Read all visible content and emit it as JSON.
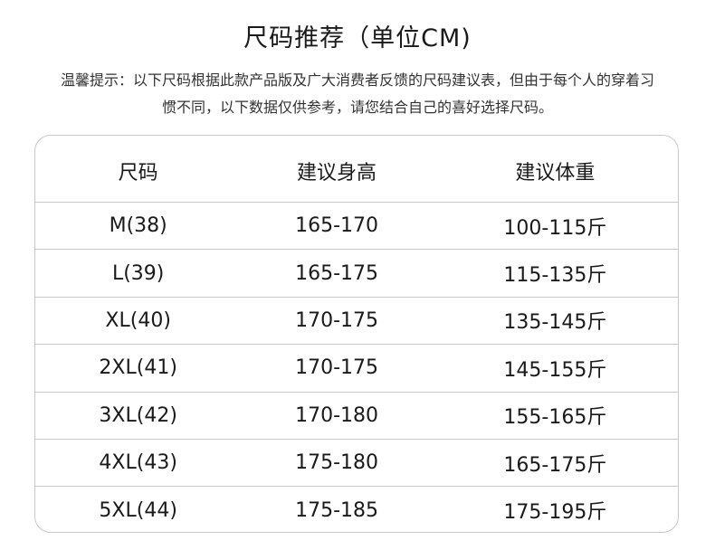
{
  "title": "尺码推荐（单位CM)",
  "tip": "温馨提示：以下尺码根据此款产品版及广大消费者反馈的尺码建议表，但由于每个人的穿着习惯不同，以下数据仅供参考，请您结合自己的喜好选择尺码。",
  "table": {
    "headers": [
      "尺码",
      "建议身高",
      "建议体重"
    ],
    "rows": [
      [
        "M(38)",
        "165-170",
        "100-115斤"
      ],
      [
        "L(39)",
        "165-175",
        "115-135斤"
      ],
      [
        "XL(40)",
        "170-175",
        "135-145斤"
      ],
      [
        "2XL(41)",
        "170-175",
        "145-155斤"
      ],
      [
        "3XL(42)",
        "170-180",
        "155-165斤"
      ],
      [
        "4XL(43)",
        "175-180",
        "165-175斤"
      ],
      [
        "5XL(44)",
        "175-185",
        "175-195斤"
      ]
    ]
  }
}
